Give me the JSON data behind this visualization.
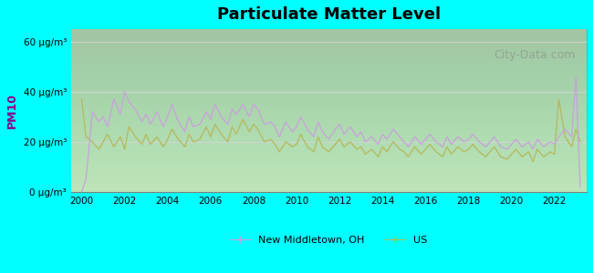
{
  "title": "Particulate Matter Level",
  "ylabel": "PM10",
  "background_outer": "#00FFFF",
  "background_inner_top": "#e8f5e8",
  "background_inner_bottom": "#ccf5cc",
  "ytick_labels": [
    "0 μg/m³",
    "20 μg/m³",
    "40 μg/m³",
    "60 μg/m³"
  ],
  "ytick_values": [
    0,
    20,
    40,
    60
  ],
  "xlim": [
    1999.5,
    2023.5
  ],
  "ylim": [
    0,
    65
  ],
  "xticklabels": [
    "2000",
    "2002",
    "2004",
    "2006",
    "2008",
    "2010",
    "2012",
    "2014",
    "2016",
    "2018",
    "2020",
    "2022"
  ],
  "color_nm": "#c9a0dc",
  "color_us": "#b5b85a",
  "legend_label_nm": "New Middletown, OH",
  "legend_label_us": "US",
  "watermark": "City-Data.com",
  "nm_x": [
    2000.0,
    2000.2,
    2000.5,
    2000.8,
    2001.0,
    2001.2,
    2001.5,
    2001.8,
    2002.0,
    2002.2,
    2002.5,
    2002.8,
    2003.0,
    2003.2,
    2003.5,
    2003.8,
    2004.0,
    2004.2,
    2004.5,
    2004.8,
    2005.0,
    2005.2,
    2005.5,
    2005.8,
    2006.0,
    2006.2,
    2006.5,
    2006.8,
    2007.0,
    2007.2,
    2007.5,
    2007.8,
    2008.0,
    2008.2,
    2008.5,
    2008.8,
    2009.0,
    2009.2,
    2009.5,
    2009.8,
    2010.0,
    2010.2,
    2010.5,
    2010.8,
    2011.0,
    2011.2,
    2011.5,
    2011.8,
    2012.0,
    2012.2,
    2012.5,
    2012.8,
    2013.0,
    2013.2,
    2013.5,
    2013.8,
    2014.0,
    2014.2,
    2014.5,
    2014.8,
    2015.0,
    2015.2,
    2015.5,
    2015.8,
    2016.0,
    2016.2,
    2016.5,
    2016.8,
    2017.0,
    2017.2,
    2017.5,
    2017.8,
    2018.0,
    2018.2,
    2018.5,
    2018.8,
    2019.0,
    2019.2,
    2019.5,
    2019.8,
    2020.0,
    2020.2,
    2020.5,
    2020.8,
    2021.0,
    2021.2,
    2021.5,
    2021.8,
    2022.0,
    2022.2,
    2022.5,
    2022.8,
    2023.0,
    2023.2
  ],
  "nm_y": [
    0,
    5,
    32,
    28,
    30,
    26,
    37,
    31,
    40,
    36,
    33,
    28,
    31,
    27,
    32,
    26,
    30,
    35,
    28,
    24,
    30,
    26,
    27,
    32,
    29,
    35,
    30,
    27,
    33,
    31,
    35,
    30,
    35,
    33,
    27,
    28,
    26,
    22,
    28,
    24,
    26,
    30,
    25,
    22,
    28,
    24,
    21,
    25,
    27,
    23,
    26,
    22,
    24,
    20,
    22,
    19,
    23,
    21,
    25,
    22,
    20,
    18,
    22,
    19,
    21,
    23,
    20,
    18,
    22,
    19,
    22,
    20,
    21,
    23,
    20,
    18,
    20,
    22,
    18,
    17,
    19,
    21,
    18,
    20,
    17,
    21,
    18,
    20,
    19,
    22,
    25,
    22,
    46,
    2
  ],
  "us_x": [
    2000.0,
    2000.2,
    2000.5,
    2000.8,
    2001.0,
    2001.2,
    2001.5,
    2001.8,
    2002.0,
    2002.2,
    2002.5,
    2002.8,
    2003.0,
    2003.2,
    2003.5,
    2003.8,
    2004.0,
    2004.2,
    2004.5,
    2004.8,
    2005.0,
    2005.2,
    2005.5,
    2005.8,
    2006.0,
    2006.2,
    2006.5,
    2006.8,
    2007.0,
    2007.2,
    2007.5,
    2007.8,
    2008.0,
    2008.2,
    2008.5,
    2008.8,
    2009.0,
    2009.2,
    2009.5,
    2009.8,
    2010.0,
    2010.2,
    2010.5,
    2010.8,
    2011.0,
    2011.2,
    2011.5,
    2011.8,
    2012.0,
    2012.2,
    2012.5,
    2012.8,
    2013.0,
    2013.2,
    2013.5,
    2013.8,
    2014.0,
    2014.2,
    2014.5,
    2014.8,
    2015.0,
    2015.2,
    2015.5,
    2015.8,
    2016.0,
    2016.2,
    2016.5,
    2016.8,
    2017.0,
    2017.2,
    2017.5,
    2017.8,
    2018.0,
    2018.2,
    2018.5,
    2018.8,
    2019.0,
    2019.2,
    2019.5,
    2019.8,
    2020.0,
    2020.2,
    2020.5,
    2020.8,
    2021.0,
    2021.2,
    2021.5,
    2021.8,
    2022.0,
    2022.2,
    2022.5,
    2022.8,
    2023.0,
    2023.2
  ],
  "us_y": [
    37,
    22,
    20,
    17,
    20,
    23,
    18,
    22,
    17,
    26,
    22,
    19,
    23,
    19,
    22,
    18,
    21,
    25,
    21,
    18,
    23,
    20,
    21,
    26,
    22,
    27,
    23,
    20,
    26,
    23,
    29,
    24,
    27,
    25,
    20,
    21,
    19,
    16,
    20,
    18,
    19,
    23,
    18,
    16,
    22,
    18,
    16,
    19,
    21,
    18,
    20,
    17,
    18,
    15,
    17,
    14,
    18,
    16,
    20,
    17,
    16,
    14,
    18,
    15,
    17,
    19,
    16,
    14,
    18,
    15,
    18,
    16,
    17,
    19,
    16,
    14,
    16,
    18,
    14,
    13,
    15,
    17,
    14,
    16,
    12,
    17,
    14,
    16,
    15,
    37,
    22,
    18,
    25,
    20
  ]
}
